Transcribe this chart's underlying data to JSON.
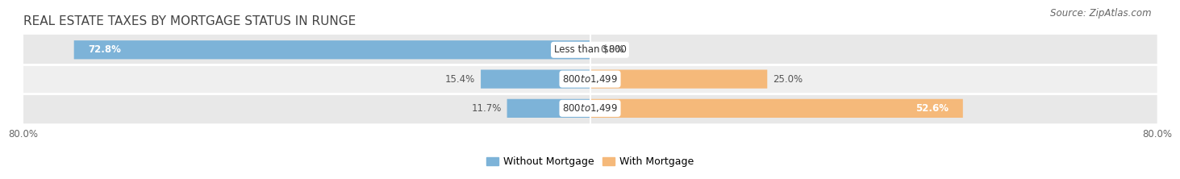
{
  "title": "REAL ESTATE TAXES BY MORTGAGE STATUS IN RUNGE",
  "source": "Source: ZipAtlas.com",
  "rows": [
    {
      "label": "Less than $800",
      "without_mortgage": 72.8,
      "with_mortgage": 0.0,
      "without_label": "72.8%",
      "with_label": "0.0%"
    },
    {
      "label": "$800 to $1,499",
      "without_mortgage": 15.4,
      "with_mortgage": 25.0,
      "without_label": "15.4%",
      "with_label": "25.0%"
    },
    {
      "label": "$800 to $1,499",
      "without_mortgage": 11.7,
      "with_mortgage": 52.6,
      "without_label": "11.7%",
      "with_label": "52.6%"
    }
  ],
  "xlim": [
    -80,
    80
  ],
  "xtick_left_val": -80.0,
  "xtick_right_val": 80.0,
  "xtick_left_label": "80.0%",
  "xtick_right_label": "80.0%",
  "color_without": "#7db3d8",
  "color_with": "#f5b97a",
  "color_row0": "#e8e8e8",
  "color_row1": "#efefef",
  "color_row2": "#e8e8e8",
  "legend_without": "Without Mortgage",
  "legend_with": "With Mortgage",
  "title_fontsize": 11,
  "source_fontsize": 8.5,
  "bar_label_fontsize": 8.5,
  "tick_fontsize": 8.5,
  "legend_fontsize": 9
}
